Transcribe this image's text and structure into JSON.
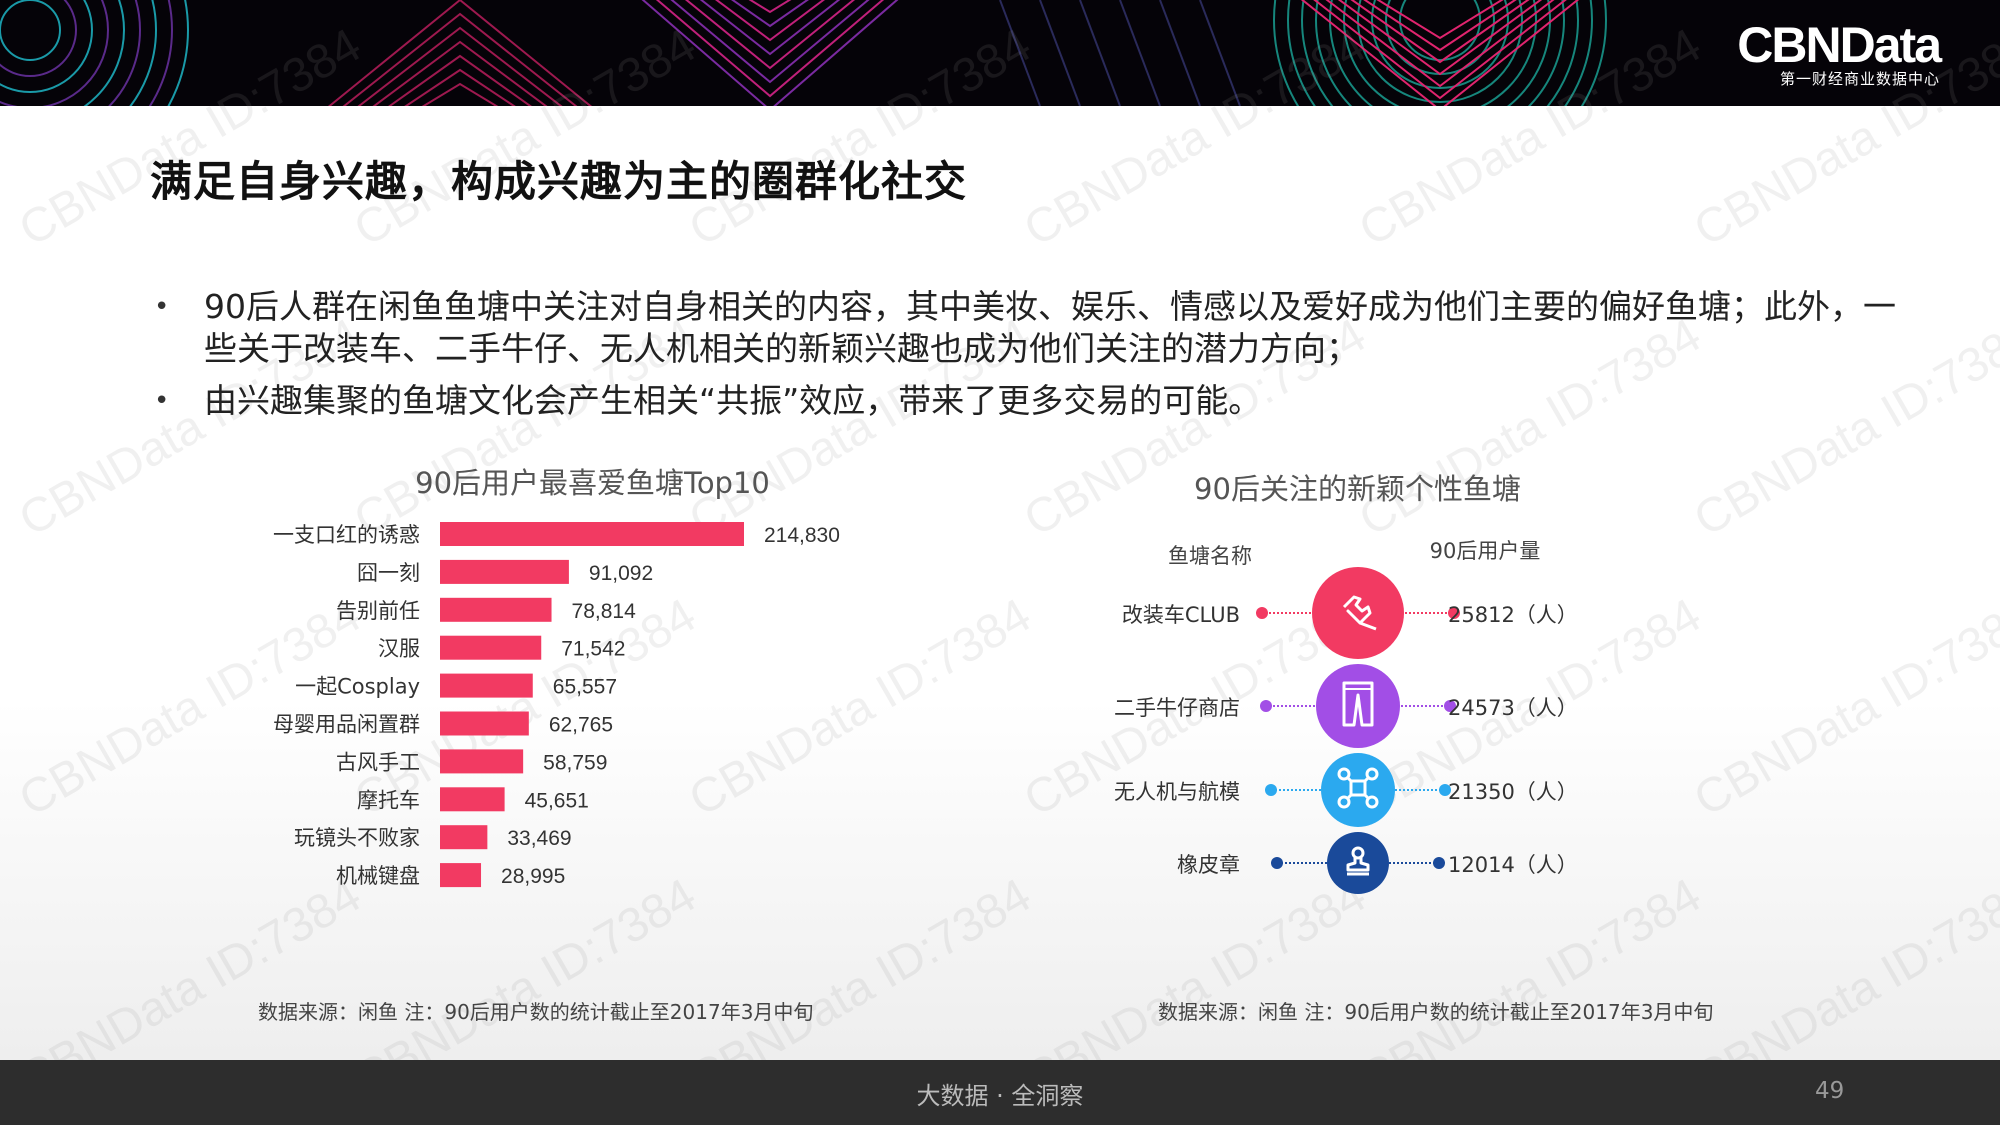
{
  "header": {
    "logo_brand": "CBNData",
    "logo_sub": "第一财经商业数据中心",
    "accent_color": "#f23a62"
  },
  "title": "满足自身兴趣，构成兴趣为主的圈群化社交",
  "bullets": [
    "90后人群在闲鱼鱼塘中关注对自身相关的内容，其中美妆、娱乐、情感以及爱好成为他们主要的偏好鱼塘；此外，一些关于改装车、二手牛仔、无人机相关的新颖兴趣也成为他们关注的潜力方向；",
    "由兴趣集聚的鱼塘文化会产生相关“共振”效应，带来了更多交易的可能。"
  ],
  "watermark_text": "CBNData ID:7384",
  "chart_data": [
    {
      "type": "bar",
      "orientation": "horizontal",
      "title": "90后用户最喜爱鱼塘Top10",
      "categories": [
        "一支口红的诱惑",
        "囧一刻",
        "告别前任",
        "汉服",
        "一起Cosplay",
        "母婴用品闲置群",
        "古风手工",
        "摩托车",
        "玩镜头不败家",
        "机械键盘"
      ],
      "values": [
        214830,
        91092,
        78814,
        71542,
        65557,
        62765,
        58759,
        45651,
        33469,
        28995
      ],
      "value_labels": [
        "214,830",
        "91,092",
        "78,814",
        "71,542",
        "65,557",
        "62,765",
        "58,759",
        "45,651",
        "33,469",
        "28,995"
      ],
      "color": "#f23a62",
      "xlim": [
        0,
        214830
      ]
    },
    {
      "type": "table",
      "title": "90后关注的新颖个性鱼塘",
      "columns": [
        "鱼塘名称",
        "90后用户量"
      ],
      "rows": [
        {
          "name": "改装车CLUB",
          "users": "25812（人）",
          "value": 25812,
          "color": "#f23a62",
          "icon": "wrench-icon"
        },
        {
          "name": "二手牛仔商店",
          "users": "24573（人）",
          "value": 24573,
          "color": "#a24ee6",
          "icon": "jeans-icon"
        },
        {
          "name": "无人机与航模",
          "users": "21350（人）",
          "value": 21350,
          "color": "#2ba9ef",
          "icon": "drone-icon"
        },
        {
          "name": "橡皮章",
          "users": "12014（人）",
          "value": 12014,
          "color": "#1a4a9a",
          "icon": "stamp-icon"
        }
      ]
    }
  ],
  "sources": {
    "left": "数据来源：闲鱼   注：90后用户数的统计截止至2017年3月中旬",
    "right": "数据来源：闲鱼   注：90后用户数的统计截止至2017年3月中旬"
  },
  "footer": {
    "tagline": "大数据 · 全洞察",
    "page_number": "49"
  }
}
